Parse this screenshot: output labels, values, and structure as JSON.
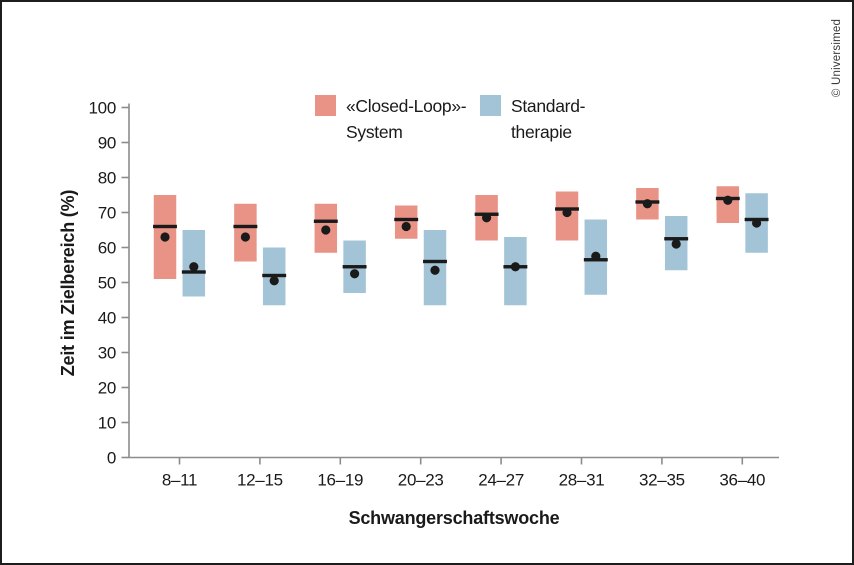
{
  "frame": {
    "border_color": "#1d1d1d",
    "background": "#ffffff"
  },
  "watermark": {
    "text": "© Universimed"
  },
  "legend": {
    "items": [
      {
        "name": "closed-loop-system",
        "line1": "«Closed-Loop»-",
        "line2": "System",
        "color": "#E99387"
      },
      {
        "name": "standard-therapie",
        "line1": "Standard-",
        "line2": "therapie",
        "color": "#A2C4D6"
      }
    ]
  },
  "chart_data": {
    "type": "bar",
    "subtype": "floating range bars (IQR) with black median line and mean dot",
    "title": "",
    "xlabel": "Schwangerschaftswoche",
    "ylabel": "Zeit im Zielbereich (%)",
    "ylim": [
      0,
      100
    ],
    "yticks": [
      0,
      10,
      20,
      30,
      40,
      50,
      60,
      70,
      80,
      90,
      100
    ],
    "grid": false,
    "legend_position": "top-center",
    "axis_color": "#8c8c8c",
    "marker_color": "#1a1a1a",
    "categories": [
      "8–11",
      "12–15",
      "16–19",
      "20–23",
      "24–27",
      "28–31",
      "32–35",
      "36–40"
    ],
    "series": [
      {
        "name": "«Closed-Loop»-System",
        "color": "#E99387",
        "bars": [
          {
            "low": 51,
            "high": 75,
            "median": 66,
            "mean": 63
          },
          {
            "low": 56,
            "high": 72.5,
            "median": 66,
            "mean": 63
          },
          {
            "low": 58.5,
            "high": 72.5,
            "median": 67.5,
            "mean": 65
          },
          {
            "low": 62.5,
            "high": 72,
            "median": 68,
            "mean": 66
          },
          {
            "low": 62,
            "high": 75,
            "median": 69.5,
            "mean": 68.5
          },
          {
            "low": 62,
            "high": 76,
            "median": 71,
            "mean": 70
          },
          {
            "low": 68,
            "high": 77,
            "median": 73,
            "mean": 72.5
          },
          {
            "low": 67,
            "high": 77.5,
            "median": 74,
            "mean": 73.5
          }
        ]
      },
      {
        "name": "Standardtherapie",
        "color": "#A2C4D6",
        "bars": [
          {
            "low": 46,
            "high": 65,
            "median": 53,
            "mean": 54.5
          },
          {
            "low": 43.5,
            "high": 60,
            "median": 52,
            "mean": 50.5
          },
          {
            "low": 47,
            "high": 62,
            "median": 54.5,
            "mean": 52.5
          },
          {
            "low": 43.5,
            "high": 65,
            "median": 56,
            "mean": 53.5
          },
          {
            "low": 43.5,
            "high": 63,
            "median": 54.5,
            "mean": 54.5
          },
          {
            "low": 46.5,
            "high": 68,
            "median": 56.5,
            "mean": 57.5
          },
          {
            "low": 53.5,
            "high": 69,
            "median": 62.5,
            "mean": 61
          },
          {
            "low": 58.5,
            "high": 75.5,
            "median": 68,
            "mean": 67
          }
        ]
      }
    ]
  }
}
